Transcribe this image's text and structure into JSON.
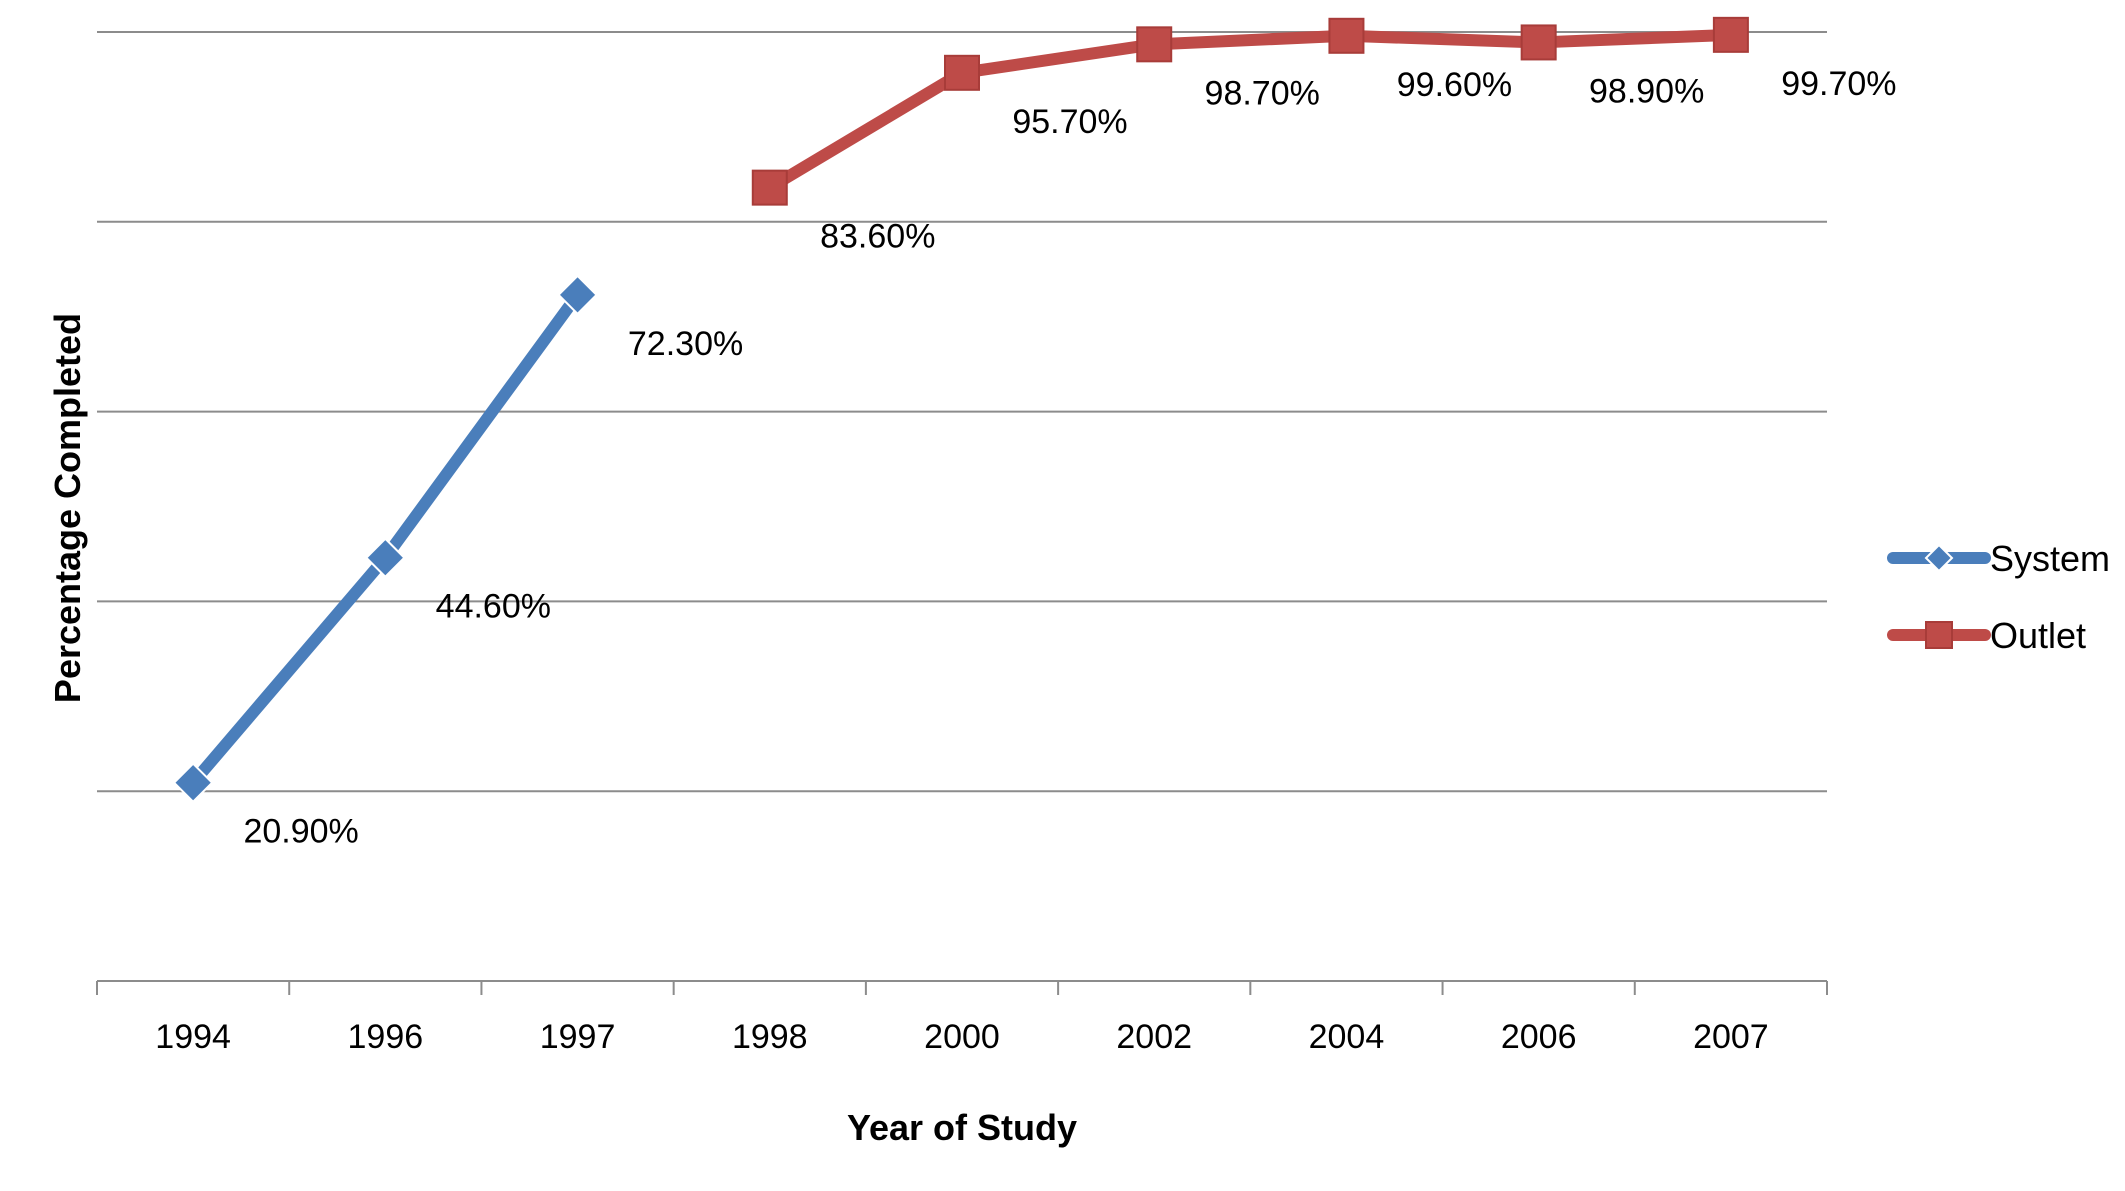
{
  "chart_data": {
    "type": "line",
    "categories": [
      "1994",
      "1996",
      "1997",
      "1998",
      "2000",
      "2002",
      "2004",
      "2006",
      "2007"
    ],
    "series": [
      {
        "name": "System",
        "color": "#4a7ebb",
        "marker": "diamond",
        "values": [
          20.9,
          44.6,
          72.3,
          null,
          null,
          null,
          null,
          null,
          null
        ],
        "labels": [
          "20.90%",
          "44.60%",
          "72.30%",
          null,
          null,
          null,
          null,
          null,
          null
        ]
      },
      {
        "name": "Outlet",
        "color": "#be4b48",
        "marker": "square",
        "values": [
          null,
          null,
          null,
          83.6,
          95.7,
          98.7,
          99.6,
          98.9,
          99.7
        ],
        "labels": [
          null,
          null,
          null,
          "83.60%",
          "95.70%",
          "98.70%",
          "99.60%",
          "98.90%",
          "99.70%"
        ]
      }
    ],
    "xlabel": "Year of Study",
    "ylabel": "Percentage Completed",
    "ylim": [
      0,
      100
    ],
    "grid": true,
    "legend": "right"
  }
}
